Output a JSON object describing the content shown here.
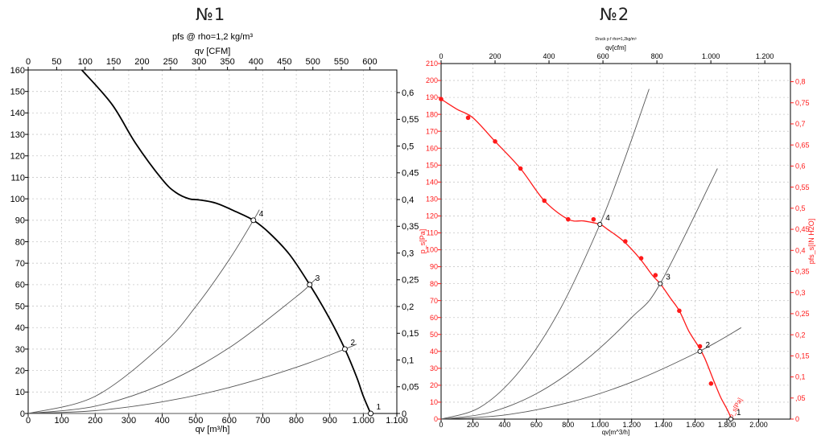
{
  "headings": {
    "left": "№1",
    "right": "№2"
  },
  "colors": {
    "curve_left": "#000000",
    "curve_right": "#ff1a1a",
    "system": "#555555",
    "grid": "#c8c8c8"
  },
  "chart_data": [
    {
      "type": "line",
      "title": "pfs @ rho=1,2 kg/m³",
      "xlabel": "qv [m³/h]",
      "x2label": "qv [CFM]",
      "ylabel": "",
      "xlim": [
        0,
        1100
      ],
      "ylim": [
        0,
        160
      ],
      "x2lim": [
        0,
        647.4
      ],
      "y2lim": [
        0,
        0.6423
      ],
      "x_ticks": [
        0,
        100,
        200,
        300,
        400,
        500,
        600,
        700,
        800,
        900,
        1000,
        1100
      ],
      "x_tick_labels": [
        "0",
        "100",
        "200",
        "300",
        "400",
        "500",
        "600",
        "700",
        "800",
        "900",
        "1.000",
        "1.100"
      ],
      "y_ticks": [
        0,
        10,
        20,
        30,
        40,
        50,
        60,
        70,
        80,
        90,
        100,
        110,
        120,
        130,
        140,
        150,
        160
      ],
      "x2_ticks": [
        0,
        50,
        100,
        150,
        200,
        250,
        300,
        350,
        400,
        450,
        500,
        550,
        600
      ],
      "y2_ticks": [
        0,
        0.05,
        0.1,
        0.15,
        0.2,
        0.25,
        0.3,
        0.35,
        0.4,
        0.45,
        0.5,
        0.55,
        0.6
      ],
      "y2_tick_labels": [
        "0",
        "0,05",
        "0,1",
        "0,15",
        "0,2",
        "0,25",
        "0,3",
        "0,35",
        "0,4",
        "0,45",
        "0,5",
        "0,55",
        "0,6"
      ],
      "grid": true,
      "series": [
        {
          "x": [
            160,
            250,
            320,
            400,
            440,
            480,
            510,
            560,
            620,
            672,
            720,
            780,
            840,
            900,
            945,
            980,
            1000,
            1022
          ],
          "y": [
            160,
            144,
            126,
            109,
            103,
            100,
            99.5,
            98,
            94,
            90,
            84,
            74,
            60,
            44,
            30,
            17,
            8,
            0
          ]
        }
      ],
      "system_curves": [
        {
          "point": "1",
          "x": [
            0,
            1022
          ],
          "y": [
            0,
            0
          ]
        },
        {
          "point": "2",
          "x": [
            0,
            200,
            400,
            600,
            800,
            945,
            980
          ],
          "y": [
            0,
            1.3,
            5.4,
            12.1,
            21.5,
            30,
            32.3
          ]
        },
        {
          "point": "3",
          "x": [
            0,
            200,
            400,
            600,
            800,
            840,
            860
          ],
          "y": [
            0,
            3.4,
            13.6,
            30.6,
            54.4,
            60,
            62.9
          ]
        },
        {
          "point": "4",
          "x": [
            0,
            200,
            400,
            500,
            600,
            672,
            690
          ],
          "y": [
            0,
            8.0,
            31.9,
            49.8,
            71.7,
            90,
            94.9
          ]
        }
      ],
      "operating_points": [
        {
          "label": "1",
          "x": 1022,
          "y": 0
        },
        {
          "label": "2",
          "x": 945,
          "y": 30
        },
        {
          "label": "3",
          "x": 840,
          "y": 60
        },
        {
          "label": "4",
          "x": 672,
          "y": 90
        }
      ]
    },
    {
      "type": "line",
      "title": "Druck p f rho=1,2kg/m³",
      "xlabel": "qv[m^3/h]",
      "x2label": "qv[cfm]",
      "ylabel": "p_s[Pa]",
      "y2label": "pfs_s[IN H2O]",
      "xlim": [
        0,
        2200
      ],
      "ylim": [
        0,
        210
      ],
      "x2lim": [
        0,
        1295
      ],
      "y2lim": [
        0,
        0.843
      ],
      "x_ticks": [
        0,
        200,
        400,
        600,
        800,
        1000,
        1200,
        1400,
        1600,
        1800,
        2000
      ],
      "x_tick_labels": [
        "0",
        "200",
        "400",
        "600",
        "800",
        "1.000",
        "1.200",
        "1.400",
        "1.600",
        "1.800",
        "2.000"
      ],
      "y_ticks": [
        0,
        10,
        20,
        30,
        40,
        50,
        60,
        70,
        80,
        90,
        100,
        110,
        120,
        130,
        140,
        150,
        160,
        170,
        180,
        190,
        200,
        210
      ],
      "x2_ticks": [
        0,
        200,
        400,
        600,
        800,
        1000,
        1200
      ],
      "x2_tick_labels": [
        "0",
        "200",
        "400",
        "600",
        "800",
        "1.000",
        "1.200"
      ],
      "y2_ticks": [
        0,
        0.05,
        0.1,
        0.15,
        0.2,
        0.25,
        0.3,
        0.35,
        0.4,
        0.45,
        0.5,
        0.55,
        0.6,
        0.65,
        0.7,
        0.75,
        0.8
      ],
      "y2_tick_labels": [
        "0",
        ",05",
        "0,1",
        "0,15",
        "0,2",
        "0,25",
        "0,3",
        "0,35",
        "0,4",
        "0,45",
        "0,5",
        "0,55",
        "0,6",
        "0,65",
        "0,7",
        "0,75",
        "0,8"
      ],
      "grid": true,
      "curve_label": "p_s[Pa]",
      "series": [
        {
          "name": "p_s[Pa]",
          "x": [
            0,
            100,
            200,
            340,
            500,
            650,
            800,
            900,
            1000,
            1050,
            1150,
            1250,
            1330,
            1380,
            1440,
            1500,
            1560,
            1620,
            1660,
            1720,
            1760,
            1800,
            1830
          ],
          "y": [
            189,
            183,
            178,
            164,
            148,
            129,
            118,
            117,
            115,
            112,
            105,
            95,
            85,
            80,
            72,
            64,
            52,
            43,
            36,
            22,
            13,
            6,
            0
          ]
        }
      ],
      "markers": {
        "x": [
          0,
          170,
          340,
          500,
          650,
          800,
          960,
          1000,
          1160,
          1260,
          1350,
          1500,
          1630,
          1700
        ],
        "y": [
          189,
          178,
          164,
          148,
          129,
          118,
          118,
          115,
          105,
          95,
          85,
          64,
          43,
          21
        ]
      },
      "system_curves": [
        {
          "point": "2",
          "x": [
            0,
            400,
            800,
            1200,
            1630,
            1890
          ],
          "y": [
            0,
            2.4,
            9.7,
            21.8,
            40.2,
            54
          ]
        },
        {
          "point": "3",
          "x": [
            0,
            300,
            600,
            900,
            1200,
            1380,
            1740
          ],
          "y": [
            0,
            3.8,
            15,
            34,
            60,
            80,
            148
          ]
        },
        {
          "point": "4",
          "x": [
            0,
            250,
            500,
            750,
            1000,
            1150,
            1310
          ],
          "y": [
            0,
            7.2,
            29,
            65,
            115,
            152,
            195
          ]
        }
      ],
      "operating_points": [
        {
          "label": "1",
          "x": 1825,
          "y": 0
        },
        {
          "label": "2",
          "x": 1630,
          "y": 40
        },
        {
          "label": "3",
          "x": 1380,
          "y": 80
        },
        {
          "label": "4",
          "x": 1000,
          "y": 115
        }
      ]
    }
  ]
}
